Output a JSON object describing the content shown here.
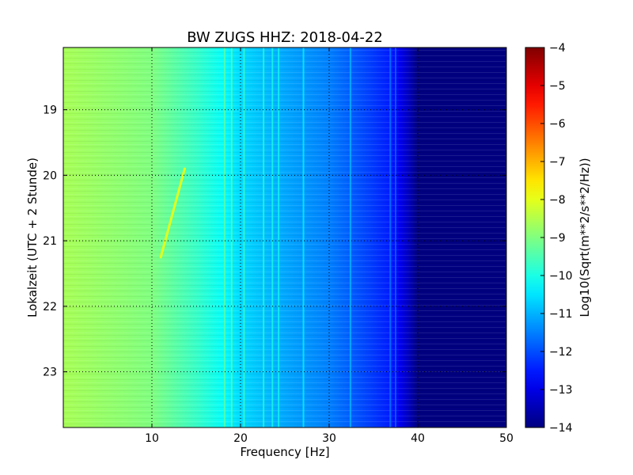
{
  "chart_data": {
    "type": "heatmap",
    "title": "BW ZUGS HHZ: 2018-04-22",
    "xlabel": "Frequency [Hz]",
    "ylabel": "Lokalzeit (UTC + 2 Stunde)",
    "xlim": [
      0,
      50
    ],
    "ylim": [
      18.05,
      23.85
    ],
    "y_inverted": true,
    "grid": true,
    "xticks": [
      10,
      20,
      30,
      40,
      50
    ],
    "yticks": [
      19,
      20,
      21,
      22,
      23
    ],
    "colorbar": {
      "label": "Log10(Sqrt(m**2/s**2/Hz))",
      "colormap": "jet",
      "range": [
        -14,
        -4
      ],
      "ticks": [
        -14,
        -13,
        -12,
        -11,
        -10,
        -9,
        -8,
        -7,
        -6,
        -5,
        -4
      ]
    },
    "frequency_profile": {
      "frequency_hz": [
        0,
        5,
        10,
        15,
        18,
        20,
        25,
        30,
        35,
        37,
        38,
        39,
        40,
        50
      ],
      "level": [
        -8.6,
        -8.8,
        -9.0,
        -9.7,
        -10.2,
        -10.6,
        -11.1,
        -11.5,
        -12.2,
        -12.5,
        -12.9,
        -13.4,
        -14,
        -14
      ]
    },
    "spectral_lines_hz": [
      18.2,
      19.0,
      20.4,
      22.6,
      23.6,
      24.3,
      27.1,
      32.4,
      36.9,
      37.5
    ],
    "features": [
      {
        "name": "drifting line",
        "start": {
          "hz": 11.0,
          "hour": 21.25
        },
        "end": {
          "hz": 13.7,
          "hour": 19.9
        }
      }
    ]
  }
}
